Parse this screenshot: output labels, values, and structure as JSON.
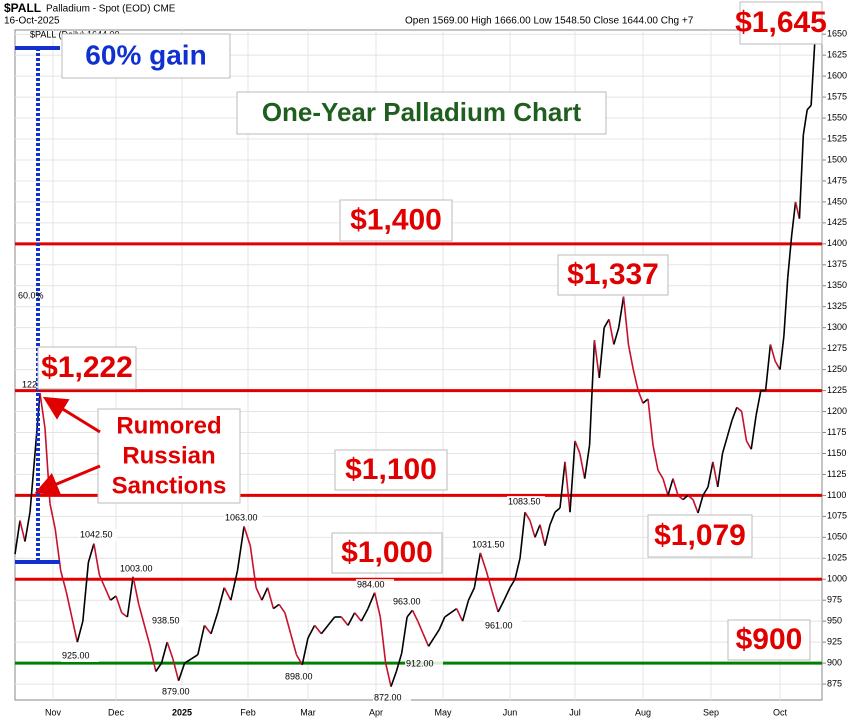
{
  "chart_data": {
    "type": "line",
    "title": "$PALL",
    "subtitle": "Palladium - Spot (EOD) CME",
    "date": "16-Oct-2025",
    "ohlc": "Open 1569.00  High 1666.00  Low 1548.50  Close 1644.00  Chg +7",
    "legend": "$PALL (Daily) 1644.00",
    "ylim": [
      856,
      1655
    ],
    "yticks": [
      875,
      900,
      925,
      950,
      975,
      1000,
      1025,
      1050,
      1075,
      1100,
      1125,
      1150,
      1175,
      1200,
      1225,
      1250,
      1275,
      1300,
      1325,
      1350,
      1375,
      1400,
      1425,
      1450,
      1475,
      1500,
      1525,
      1550,
      1575,
      1600,
      1625,
      1650
    ],
    "xlim": [
      0,
      149
    ],
    "xticks": [
      {
        "value": 7.6,
        "label": "Nov"
      },
      {
        "value": 19,
        "label": "Dec"
      },
      {
        "value": 30.6,
        "label": "2025"
      },
      {
        "value": 40.6,
        "label": "Feb"
      },
      {
        "value": 51,
        "label": "Mar"
      },
      {
        "value": 61.2,
        "label": "Apr"
      },
      {
        "value": 73.7,
        "label": "May"
      },
      {
        "value": 85,
        "label": "Jun"
      },
      {
        "value": 98,
        "label": "Jul"
      },
      {
        "value": 112,
        "label": "Aug"
      },
      {
        "value": 125.6,
        "label": "Sep"
      },
      {
        "value": 140,
        "label": "Oct"
      }
    ],
    "grid": true,
    "up_color": "#000000",
    "down_color": "#c8102e",
    "values": [
      1030,
      1070,
      1045,
      1080,
      1150,
      1222,
      1180,
      1090,
      1060,
      1010,
      985,
      955,
      925,
      950,
      1020,
      1042.5,
      1005,
      990,
      975,
      980,
      960,
      955,
      1003,
      970,
      945,
      920,
      890,
      900,
      925,
      905,
      879,
      900,
      905,
      910,
      945,
      935,
      960,
      990,
      975,
      1010,
      1063,
      1040,
      990,
      975,
      990,
      965,
      970,
      960,
      935,
      910,
      898,
      930,
      945,
      935,
      945,
      955,
      955,
      945,
      960,
      950,
      965,
      984,
      955,
      900,
      872,
      890,
      912,
      955,
      963,
      950,
      935,
      920,
      930,
      940,
      955,
      960,
      965,
      950,
      975,
      990,
      1031.5,
      1010,
      985,
      961,
      975,
      990,
      1000,
      1025,
      1080,
      1070,
      1050,
      1065,
      1040,
      1065,
      1080,
      1085,
      1140,
      1080,
      1165,
      1150,
      1120,
      1160,
      1285,
      1240,
      1300,
      1310,
      1280,
      1300,
      1337,
      1280,
      1250,
      1225,
      1210,
      1215,
      1160,
      1130,
      1120,
      1100,
      1120,
      1100,
      1095,
      1100,
      1095,
      1079,
      1100,
      1110,
      1140,
      1110,
      1150,
      1170,
      1190,
      1205,
      1200,
      1165,
      1155,
      1195,
      1225,
      1225,
      1280,
      1260,
      1250,
      1290,
      1360,
      1410,
      1450,
      1430,
      1530,
      1560,
      1565,
      1645
    ],
    "levels": [
      {
        "value": 1400,
        "color": "#e00000"
      },
      {
        "value": 1225,
        "color": "#e00000"
      },
      {
        "value": 1100,
        "color": "#e00000"
      },
      {
        "value": 1000,
        "color": "#e00000"
      },
      {
        "value": 900,
        "color": "#008000"
      }
    ],
    "callouts": [
      {
        "value": 1042.5,
        "label": "1042.50"
      },
      {
        "value": 1003,
        "label": "1003.00"
      },
      {
        "value": 938.5,
        "label": "938.50"
      },
      {
        "value": 925,
        "label": "925.00"
      },
      {
        "value": 879,
        "label": "879.00"
      },
      {
        "value": 1063,
        "label": "1063.00"
      },
      {
        "value": 898,
        "label": "898.00"
      },
      {
        "value": 984,
        "label": "984.00"
      },
      {
        "value": 872,
        "label": "872.00"
      },
      {
        "value": 963,
        "label": "963.00"
      },
      {
        "value": 912,
        "label": "912.00"
      },
      {
        "value": 1031.5,
        "label": "1031.50"
      },
      {
        "value": 961,
        "label": "961.00"
      },
      {
        "value": 1083.5,
        "label": "1083.50"
      }
    ],
    "annotations": [
      {
        "text": "$1,645",
        "color": "#e00000"
      },
      {
        "text": "60% gain",
        "color": "#1030d0"
      },
      {
        "text": "One-Year Palladium Chart",
        "color": "#1f5e1f"
      },
      {
        "text": "$1,400",
        "color": "#e00000"
      },
      {
        "text": "$1,337",
        "color": "#e00000"
      },
      {
        "text": "$1,222",
        "color": "#e00000"
      },
      {
        "lines": [
          "Rumored",
          "Russian",
          "Sanctions"
        ],
        "color": "#e00000"
      },
      {
        "text": "$1,100",
        "color": "#e00000"
      },
      {
        "text": "$1,000",
        "color": "#e00000"
      },
      {
        "text": "$1,079",
        "color": "#e00000"
      },
      {
        "text": "$900",
        "color": "#e00000"
      }
    ],
    "small_notes": [
      "60.0%",
      "122"
    ]
  }
}
